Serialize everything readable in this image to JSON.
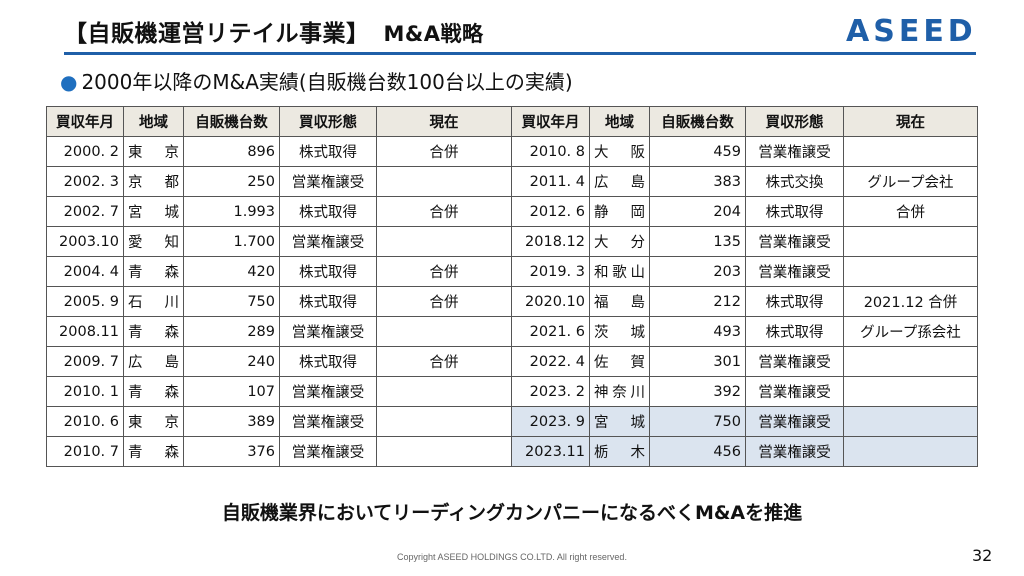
{
  "header": {
    "title": "【自販機運営リテイル事業】",
    "title_sub": "M&A戦略",
    "logo": "ASEED"
  },
  "subtitle": "2000年以降のM&A実績(自販機台数100台以上の実績)",
  "table_headers": [
    "買収年月",
    "地域",
    "自販機台数",
    "買収形態",
    "現在"
  ],
  "left_rows": [
    {
      "date": "2000. 2",
      "region": "東京",
      "count": "896",
      "type": "株式取得",
      "status": "合併"
    },
    {
      "date": "2002. 3",
      "region": "京都",
      "count": "250",
      "type": "営業権譲受",
      "status": ""
    },
    {
      "date": "2002. 7",
      "region": "宮城",
      "count": "1.993",
      "type": "株式取得",
      "status": "合併"
    },
    {
      "date": "2003.10",
      "region": "愛知",
      "count": "1.700",
      "type": "営業権譲受",
      "status": ""
    },
    {
      "date": "2004. 4",
      "region": "青森",
      "count": "420",
      "type": "株式取得",
      "status": "合併"
    },
    {
      "date": "2005. 9",
      "region": "石川",
      "count": "750",
      "type": "株式取得",
      "status": "合併"
    },
    {
      "date": "2008.11",
      "region": "青森",
      "count": "289",
      "type": "営業権譲受",
      "status": ""
    },
    {
      "date": "2009. 7",
      "region": "広島",
      "count": "240",
      "type": "株式取得",
      "status": "合併"
    },
    {
      "date": "2010. 1",
      "region": "青森",
      "count": "107",
      "type": "営業権譲受",
      "status": ""
    },
    {
      "date": "2010. 6",
      "region": "東京",
      "count": "389",
      "type": "営業権譲受",
      "status": ""
    },
    {
      "date": "2010. 7",
      "region": "青森",
      "count": "376",
      "type": "営業権譲受",
      "status": ""
    }
  ],
  "right_rows": [
    {
      "date": "2010. 8",
      "region": "大阪",
      "count": "459",
      "type": "営業権譲受",
      "status": "",
      "highlight": false
    },
    {
      "date": "2011. 4",
      "region": "広島",
      "count": "383",
      "type": "株式交換",
      "status": "グループ会社",
      "highlight": false
    },
    {
      "date": "2012. 6",
      "region": "静岡",
      "count": "204",
      "type": "株式取得",
      "status": "合併",
      "highlight": false
    },
    {
      "date": "2018.12",
      "region": "大分",
      "count": "135",
      "type": "営業権譲受",
      "status": "",
      "highlight": false
    },
    {
      "date": "2019. 3",
      "region": "和歌山",
      "count": "203",
      "type": "営業権譲受",
      "status": "",
      "highlight": false
    },
    {
      "date": "2020.10",
      "region": "福島",
      "count": "212",
      "type": "株式取得",
      "status": "2021.12 合併",
      "highlight": false
    },
    {
      "date": "2021. 6",
      "region": "茨城",
      "count": "493",
      "type": "株式取得",
      "status": "グループ孫会社",
      "highlight": false
    },
    {
      "date": "2022. 4",
      "region": "佐賀",
      "count": "301",
      "type": "営業権譲受",
      "status": "",
      "highlight": false
    },
    {
      "date": "2023. 2",
      "region": "神奈川",
      "count": "392",
      "type": "営業権譲受",
      "status": "",
      "highlight": false
    },
    {
      "date": "2023. 9",
      "region": "宮城",
      "count": "750",
      "type": "営業権譲受",
      "status": "",
      "highlight": true
    },
    {
      "date": "2023.11",
      "region": "栃木",
      "count": "456",
      "type": "営業権譲受",
      "status": "",
      "highlight": true
    }
  ],
  "slogan": "自販機業界においてリーディングカンパニーになるべくM&Aを推進",
  "copyright": "Copyright ASEED HOLDINGS CO.LTD. All right reserved.",
  "page_number": "32",
  "colors": {
    "brand": "#1f5fa8",
    "header_bg": "#ece9e1",
    "highlight_bg": "#dbe4ef"
  }
}
